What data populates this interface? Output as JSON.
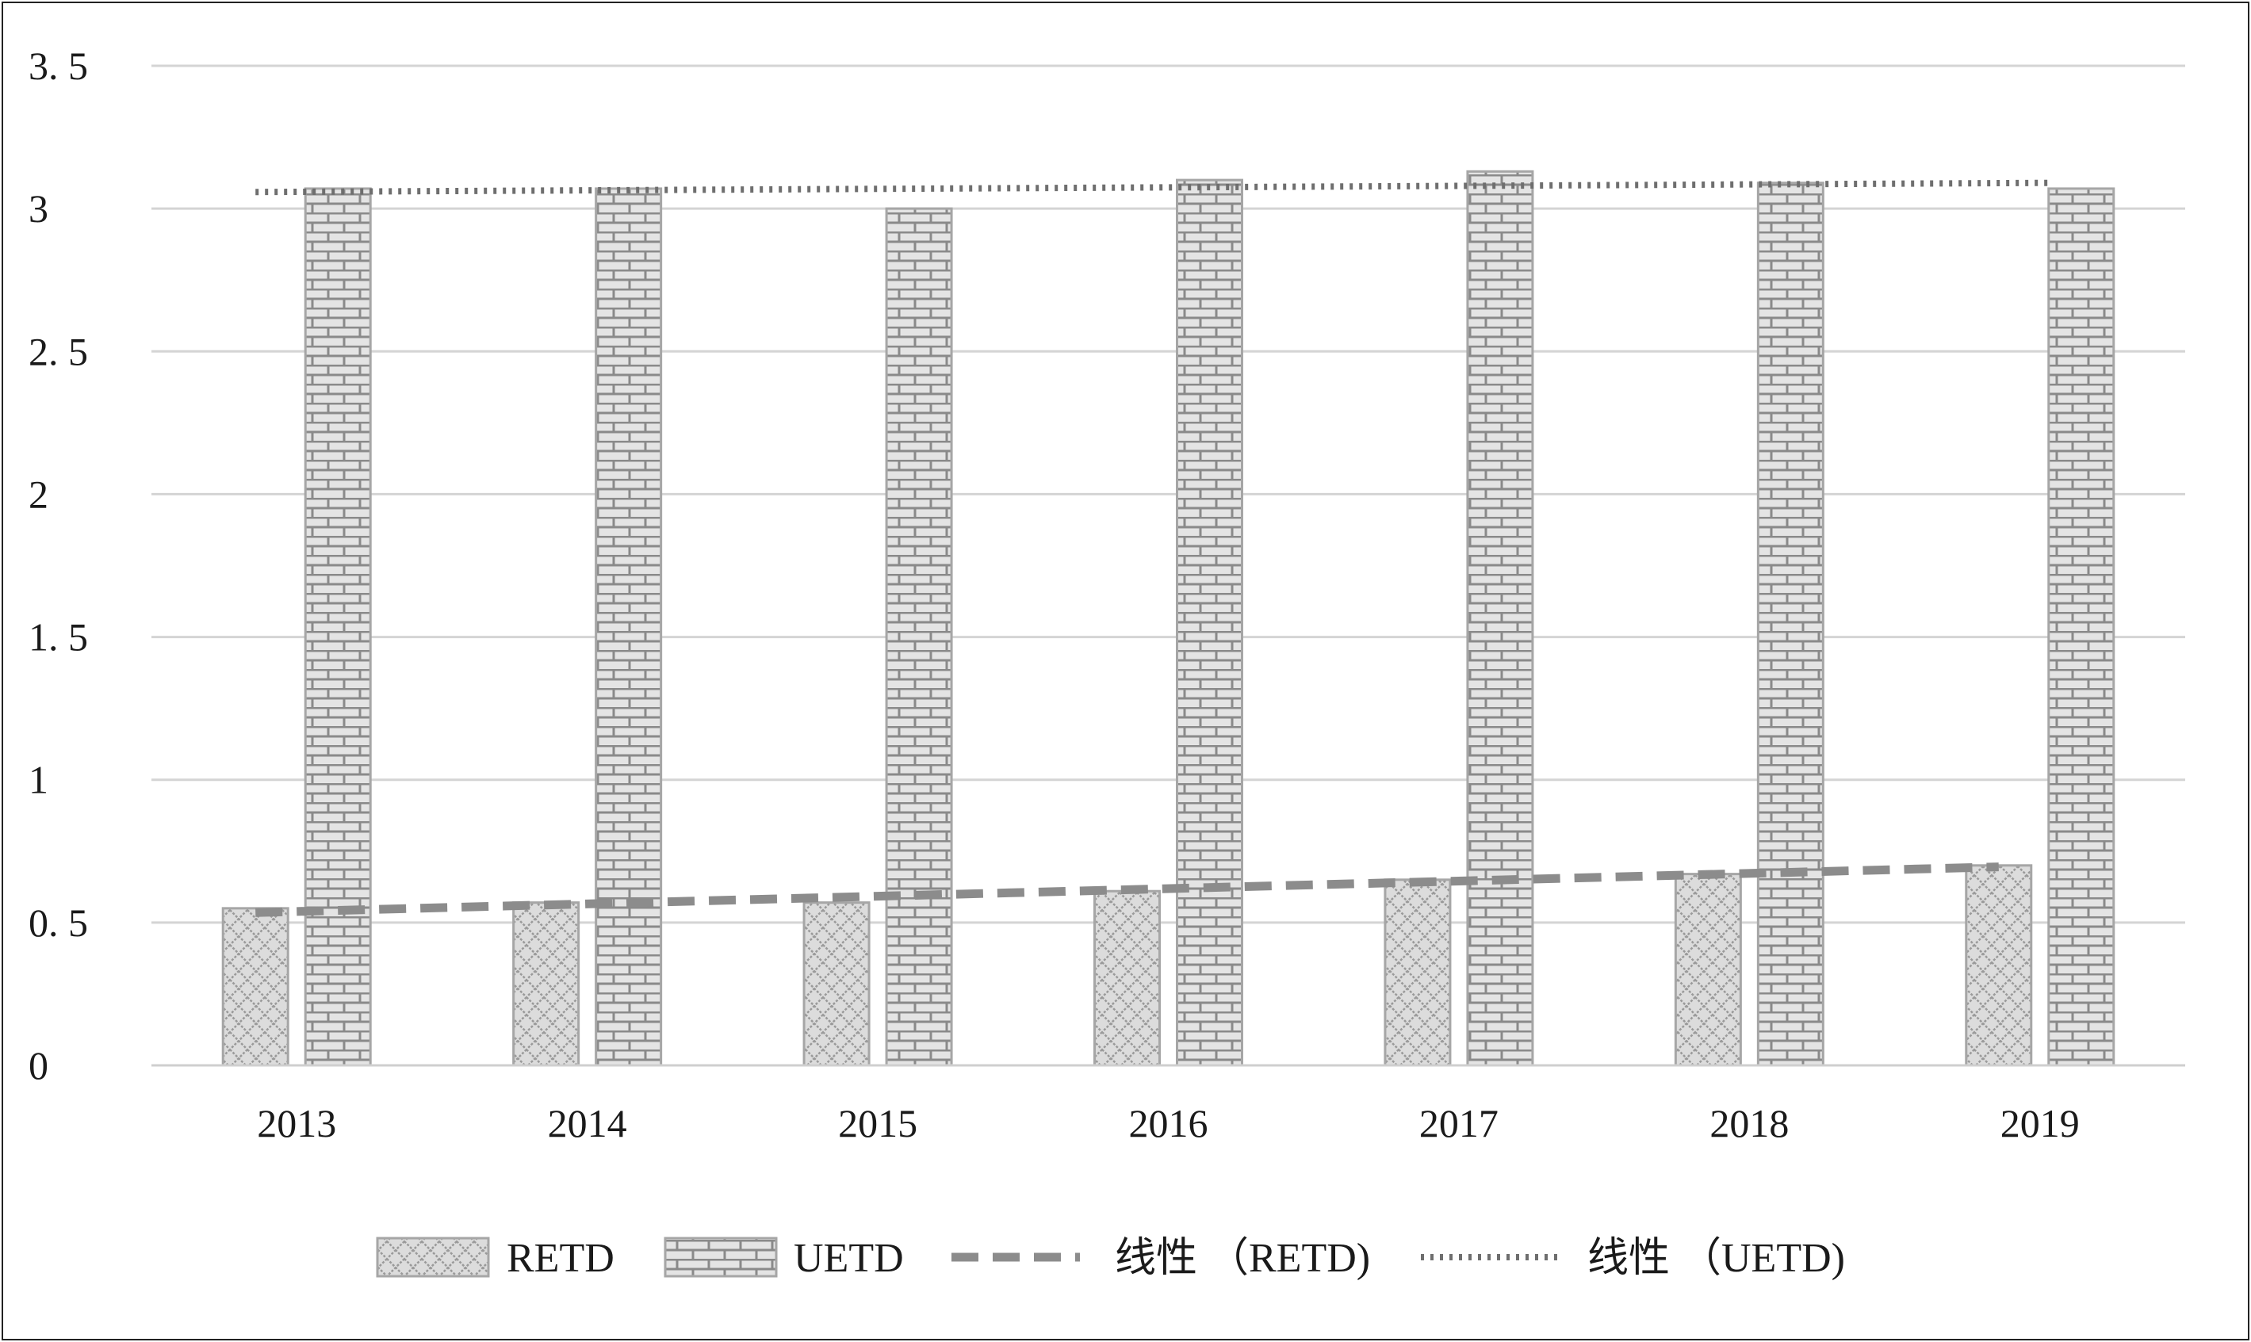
{
  "chart_data": {
    "type": "bar",
    "categories": [
      "2013",
      "2014",
      "2015",
      "2016",
      "2017",
      "2018",
      "2019"
    ],
    "series": [
      {
        "name": "RETD",
        "values": [
          0.55,
          0.57,
          0.57,
          0.61,
          0.65,
          0.67,
          0.7
        ],
        "pattern": "crosshatch",
        "fill": "#dcdcdc",
        "stroke": "#a6a6a6"
      },
      {
        "name": "UETD",
        "values": [
          3.07,
          3.07,
          3.0,
          3.1,
          3.13,
          3.09,
          3.07
        ],
        "pattern": "brick",
        "fill": "#dcdcdc",
        "stroke": "#a6a6a6"
      }
    ],
    "trendlines": [
      {
        "name": "线性 （RETD)",
        "of": "RETD",
        "style": "dashed",
        "color": "#8c8c8c",
        "start": 0.535,
        "end": 0.695
      },
      {
        "name": "线性 （UETD)",
        "of": "UETD",
        "style": "dotted",
        "color": "#6e6e6e",
        "start": 3.058,
        "end": 3.09
      }
    ],
    "yticks": [
      "0",
      "0. 5",
      "1",
      "1. 5",
      "2",
      "2. 5",
      "3",
      "3. 5"
    ],
    "ylim": [
      0,
      3.5
    ],
    "grid": true,
    "legend_position": "bottom",
    "title": "",
    "xlabel": "",
    "ylabel": ""
  }
}
